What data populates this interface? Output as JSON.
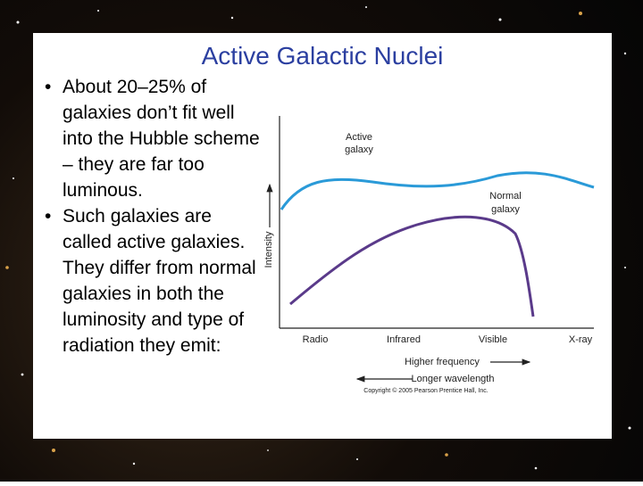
{
  "slide": {
    "title": "Active Galactic Nuclei",
    "bullets": [
      "About 20–25% of galaxies don’t fit well into the Hubble scheme – they are far too luminous.",
      "Such galaxies are called active galaxies. They differ from normal galaxies in both the luminosity and type of radiation they emit:"
    ],
    "figure": {
      "y_axis_label": "Intensity",
      "curve_labels": [
        [
          "Active",
          "galaxy"
        ],
        [
          "Normal",
          "galaxy"
        ]
      ],
      "x_labels": [
        "Radio",
        "Infrared",
        "Visible",
        "X-ray"
      ],
      "arrow_labels": [
        "Higher frequency",
        "Longer wavelength"
      ],
      "copyright": "Copyright © 2005 Pearson Prentice Hall, Inc."
    }
  }
}
